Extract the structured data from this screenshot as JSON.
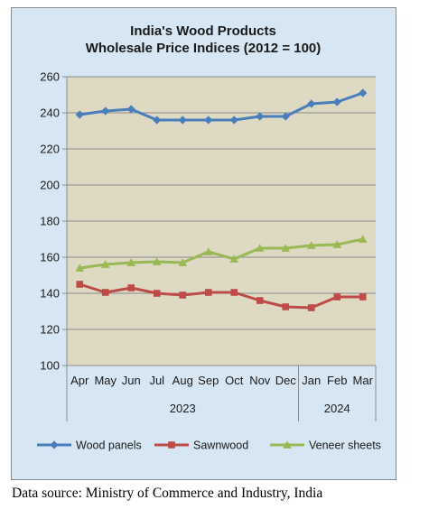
{
  "chart_data": {
    "type": "line",
    "title": [
      "India's Wood Products",
      "Wholesale Price Indices (2012 = 100)"
    ],
    "xlabel": "",
    "ylabel": "",
    "ylim": [
      100,
      260
    ],
    "yticks": [
      "100",
      "120",
      "140",
      "160",
      "180",
      "200",
      "220",
      "240",
      "260"
    ],
    "categories": [
      "Apr",
      "May",
      "Jun",
      "Jul",
      "Aug",
      "Sep",
      "Oct",
      "Nov",
      "Dec",
      "Jan",
      "Feb",
      "Mar"
    ],
    "year_groups": [
      {
        "label": "2023",
        "count": 9
      },
      {
        "label": "2024",
        "count": 3
      }
    ],
    "grid": "horizontal",
    "legend_position": "bottom",
    "series": [
      {
        "name": "Wood panels",
        "color": "#4a7ebb",
        "marker": "diamond",
        "values": [
          239,
          241,
          242,
          236,
          236,
          236,
          236,
          238,
          238,
          245,
          246,
          251
        ]
      },
      {
        "name": "Sawnwood",
        "color": "#be4b48",
        "marker": "square",
        "values": [
          145,
          140.5,
          143,
          140,
          139,
          140.5,
          140.5,
          136,
          132.5,
          132,
          138,
          138
        ]
      },
      {
        "name": "Veneer sheets",
        "color": "#98b954",
        "marker": "triangle",
        "values": [
          154,
          156,
          157,
          157.5,
          157,
          163,
          159,
          165,
          165,
          166.5,
          167,
          170
        ]
      }
    ]
  },
  "source_note": "Data source: Ministry of Commerce and Industry, India"
}
